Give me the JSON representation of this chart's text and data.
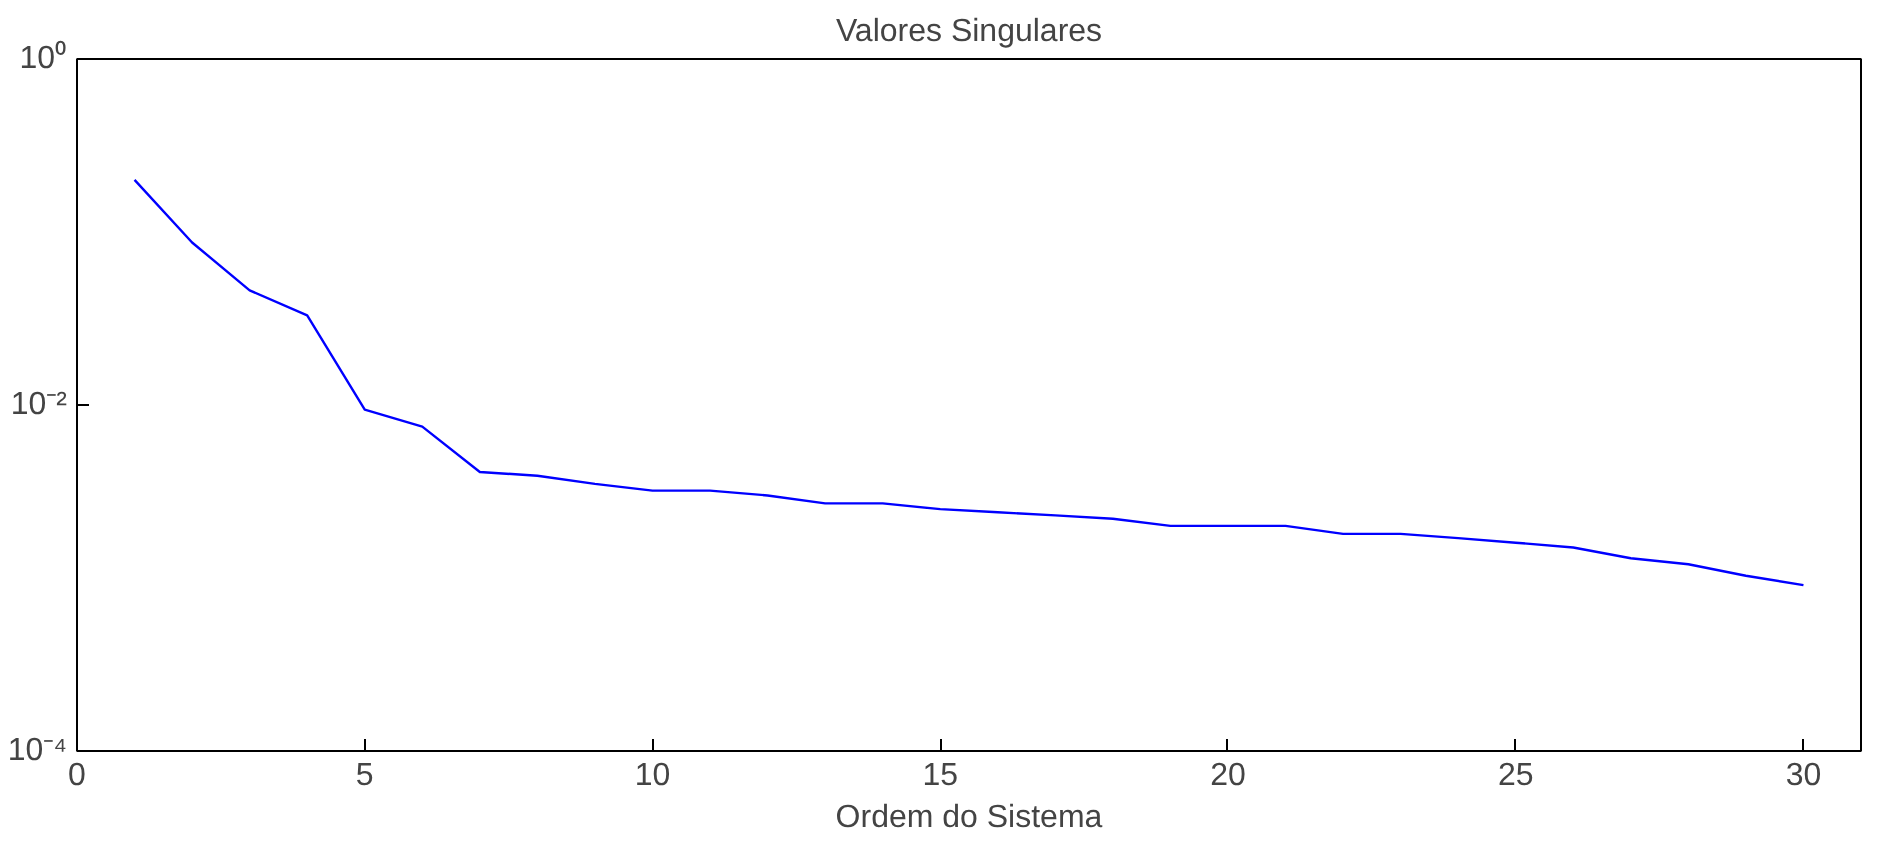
{
  "chart_data": {
    "type": "line",
    "title": "Valores Singulares",
    "xlabel": "Ordem do Sistema",
    "log": "y",
    "grid": false,
    "marker": "none",
    "line_style": "solid",
    "x": [
      1,
      2,
      3,
      4,
      5,
      6,
      7,
      8,
      9,
      10,
      11,
      12,
      13,
      14,
      15,
      16,
      17,
      18,
      19,
      20,
      21,
      22,
      23,
      24,
      25,
      26,
      27,
      28,
      29,
      30
    ],
    "series": [
      {
        "color": "#0000ff",
        "values": [
          0.2,
          0.087,
          0.046,
          0.033,
          0.0094,
          0.0075,
          0.0041,
          0.0039,
          0.0035,
          0.0032,
          0.0032,
          0.003,
          0.0027,
          0.0027,
          0.0025,
          0.0024,
          0.0023,
          0.0022,
          0.002,
          0.002,
          0.002,
          0.0018,
          0.0018,
          0.0017,
          0.0016,
          0.0015,
          0.0013,
          0.0012,
          0.00103,
          0.00091
        ]
      }
    ],
    "xlim": [
      0,
      31
    ],
    "xticks": [
      0,
      5,
      10,
      15,
      20,
      25,
      30
    ],
    "ylim": [
      0.0001,
      1
    ],
    "yticks": [
      {
        "value": 0.0001,
        "label": "10⁻⁴"
      },
      {
        "value": 0.01,
        "label": "10⁻²"
      },
      {
        "value": 1,
        "label": "10⁰"
      }
    ]
  }
}
